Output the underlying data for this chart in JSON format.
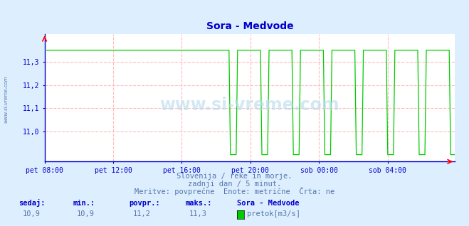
{
  "title": "Sora - Medvode",
  "bg_color": "#ddeeff",
  "plot_bg_color": "#ffffff",
  "line_color": "#00cc00",
  "axis_color": "#0000cc",
  "grid_color": "#ffbbbb",
  "text_color": "#5577aa",
  "title_color": "#0000cc",
  "ylim": [
    10.87,
    11.42
  ],
  "yticks": [
    11.0,
    11.1,
    11.2,
    11.3
  ],
  "ytick_labels": [
    "11,0",
    "11,1",
    "11,2",
    "11,3"
  ],
  "xtick_labels": [
    "pet 08:00",
    "pet 12:00",
    "pet 16:00",
    "pet 20:00",
    "sob 00:00",
    "sob 04:00"
  ],
  "xtick_positions": [
    0,
    48,
    96,
    144,
    192,
    240
  ],
  "total_points": 288,
  "subtitle1": "Slovenija / reke in morje.",
  "subtitle2": "zadnji dan / 5 minut.",
  "subtitle3": "Meritve: povprečne  Enote: metrične  Črta: ne",
  "legend_title": "Sora - Medvode",
  "legend_label": "pretok[m3/s]",
  "stat_labels": [
    "sedaj:",
    "min.:",
    "povpr.:",
    "maks.:"
  ],
  "stat_values": [
    "10,9",
    "10,9",
    "11,2",
    "11,3"
  ],
  "watermark": "www.si-vreme.com",
  "side_text": "www.si-vreme.com",
  "high_val": 11.35,
  "low_val": 10.9,
  "transition_point": 130,
  "period_high": 17,
  "period_low": 5
}
